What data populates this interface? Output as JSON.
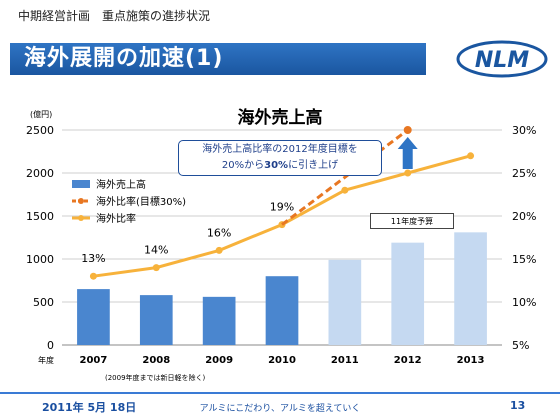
{
  "header": {
    "subtitle": "中期経営計画　重点施策の進捗状況",
    "title": "海外展開の加速(1)",
    "logo_text": "NLM"
  },
  "annotations": {
    "box_line1": "海外売上高比率の2012年度目標を",
    "box_line2_pre": "20%から",
    "box_line2_bold": "30%",
    "box_line2_post": "に引き上げ",
    "forecast": "11年度予算",
    "footnote": "(2009年度までは新日軽を除く)"
  },
  "footer": {
    "date": "2011年 5月 18日",
    "slogan": "アルミにこだわり、アルミを超えていく",
    "page": "13"
  },
  "colors": {
    "bar_actual": "#4a86cf",
    "bar_forecast": "#c5d9f1",
    "target_line": "#e87722",
    "ratio_line": "#f7b23b",
    "arrow": "#2e74c5"
  },
  "chart_data": {
    "type": "bar",
    "title": "海外売上高",
    "ylabel": "(億円)",
    "xlabel": "年度",
    "categories": [
      "2007",
      "2008",
      "2009",
      "2010",
      "2011",
      "2012",
      "2013"
    ],
    "ylim": [
      0,
      2500
    ],
    "y_ticks": [
      "0",
      "500",
      "1000",
      "1500",
      "2000",
      "2500"
    ],
    "y2lim": [
      5,
      30
    ],
    "y2_ticks": [
      "5%",
      "10%",
      "15%",
      "20%",
      "25%",
      "30%"
    ],
    "grid": true,
    "legend_position": "top-left",
    "series": [
      {
        "name": "海外売上高",
        "kind": "bar",
        "values": [
          650,
          580,
          560,
          800,
          990,
          1190,
          1310
        ],
        "forecast_from_index": 4
      },
      {
        "name": "海外比率(目標30%)",
        "kind": "line-dashed",
        "axis": "right",
        "points": [
          [
            3,
            19
          ],
          [
            5,
            30
          ]
        ]
      },
      {
        "name": "海外比率",
        "kind": "line",
        "axis": "right",
        "values": [
          13,
          14,
          16,
          19,
          23,
          25,
          27
        ],
        "labels": [
          "13%",
          "14%",
          "16%",
          "19%",
          "",
          "",
          ""
        ]
      }
    ]
  }
}
